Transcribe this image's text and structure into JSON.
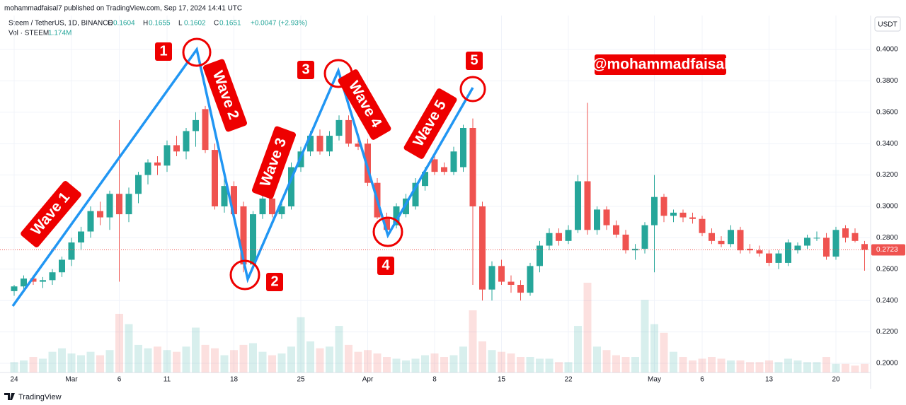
{
  "header": {
    "published": "mohammadfaisal7 published on TradingView.com, Sep 17, 2024 14:41 UTC",
    "symbol": "Steem / TetherUS, 1D, BINANCE",
    "ohlc": [
      {
        "label": "O",
        "value": "0.1604"
      },
      {
        "label": "H",
        "value": "0.1655"
      },
      {
        "label": "L",
        "value": "0.1602"
      },
      {
        "label": "C",
        "value": "0.1651"
      }
    ],
    "change": "+0.0047 (+2.93%)",
    "volume_label": "Vol · STEEM",
    "volume_value": "1.174M",
    "currency": "USDT",
    "logo": "TradingView"
  },
  "chart_data": {
    "type": "candlestick",
    "categories": [
      "24",
      null,
      null,
      null,
      null,
      null,
      "Mar",
      null,
      null,
      null,
      null,
      "6",
      null,
      null,
      null,
      null,
      "11",
      null,
      null,
      null,
      null,
      null,
      null,
      "18",
      null,
      null,
      null,
      null,
      null,
      null,
      "25",
      null,
      null,
      null,
      null,
      null,
      null,
      "Apr",
      null,
      null,
      null,
      null,
      null,
      null,
      "8",
      null,
      null,
      null,
      null,
      null,
      null,
      "15",
      null,
      null,
      null,
      null,
      null,
      null,
      "22",
      null,
      null,
      null,
      null,
      null,
      null,
      null,
      null,
      "May",
      null,
      null,
      null,
      null,
      "6",
      null,
      null,
      null,
      null,
      null,
      null,
      "13",
      null,
      null,
      null,
      null,
      null,
      null,
      "20",
      null,
      null,
      null
    ],
    "open": [
      0.246,
      0.249,
      0.254,
      0.252,
      0.253,
      0.258,
      0.266,
      0.277,
      0.284,
      0.297,
      0.293,
      0.308,
      0.295,
      0.308,
      0.32,
      0.328,
      0.326,
      0.339,
      0.335,
      0.348,
      0.362,
      0.336,
      0.3,
      0.313,
      0.3,
      0.263,
      0.295,
      0.305,
      0.295,
      0.3,
      0.325,
      0.335,
      0.345,
      0.335,
      0.345,
      0.355,
      0.34,
      0.34,
      0.315,
      0.293,
      0.288,
      0.295,
      0.3,
      0.313,
      0.33,
      0.325,
      0.322,
      0.325,
      0.35,
      0.3,
      0.247,
      0.262,
      0.252,
      0.25,
      0.245,
      0.262,
      0.275,
      0.283,
      0.278,
      0.285,
      0.316,
      0.285,
      0.298,
      0.288,
      0.282,
      0.272,
      0.273,
      0.288,
      0.306,
      0.294,
      0.296,
      0.293,
      0.292,
      0.283,
      0.278,
      0.276,
      0.285,
      0.273,
      0.272,
      0.27,
      0.264,
      0.264,
      0.272,
      0.275,
      0.28,
      0.28,
      0.268,
      0.286,
      0.283,
      0.276
    ],
    "high": [
      0.25,
      0.256,
      0.256,
      0.255,
      0.26,
      0.268,
      0.28,
      0.287,
      0.3,
      0.303,
      0.31,
      0.355,
      0.312,
      0.322,
      0.33,
      0.332,
      0.342,
      0.345,
      0.35,
      0.36,
      0.364,
      0.34,
      0.318,
      0.316,
      0.303,
      0.297,
      0.308,
      0.309,
      0.303,
      0.328,
      0.338,
      0.348,
      0.349,
      0.348,
      0.358,
      0.358,
      0.345,
      0.343,
      0.318,
      0.296,
      0.302,
      0.308,
      0.318,
      0.325,
      0.333,
      0.328,
      0.338,
      0.352,
      0.356,
      0.303,
      0.265,
      0.266,
      0.256,
      0.253,
      0.264,
      0.278,
      0.286,
      0.286,
      0.288,
      0.32,
      0.366,
      0.3,
      0.3,
      0.291,
      0.285,
      0.276,
      0.29,
      0.32,
      0.308,
      0.298,
      0.298,
      0.296,
      0.294,
      0.286,
      0.281,
      0.288,
      0.287,
      0.276,
      0.275,
      0.272,
      0.272,
      0.279,
      0.277,
      0.282,
      0.284,
      0.283,
      0.287,
      0.288,
      0.286,
      0.278
    ],
    "low": [
      0.243,
      0.246,
      0.25,
      0.248,
      0.25,
      0.255,
      0.262,
      0.272,
      0.28,
      0.288,
      0.285,
      0.252,
      0.29,
      0.302,
      0.314,
      0.32,
      0.322,
      0.332,
      0.33,
      0.338,
      0.334,
      0.298,
      0.296,
      0.293,
      0.258,
      0.26,
      0.292,
      0.293,
      0.292,
      0.298,
      0.322,
      0.332,
      0.333,
      0.332,
      0.342,
      0.338,
      0.336,
      0.313,
      0.292,
      0.282,
      0.286,
      0.293,
      0.298,
      0.31,
      0.32,
      0.32,
      0.32,
      0.322,
      0.25,
      0.24,
      0.24,
      0.25,
      0.245,
      0.24,
      0.243,
      0.258,
      0.272,
      0.275,
      0.276,
      0.283,
      0.282,
      0.282,
      0.285,
      0.28,
      0.27,
      0.266,
      0.27,
      0.258,
      0.29,
      0.29,
      0.29,
      0.289,
      0.281,
      0.276,
      0.274,
      0.274,
      0.27,
      0.27,
      0.268,
      0.262,
      0.26,
      0.262,
      0.27,
      0.273,
      0.278,
      0.266,
      0.266,
      0.277,
      0.277,
      0.259
    ],
    "close": [
      0.249,
      0.254,
      0.252,
      0.253,
      0.258,
      0.266,
      0.277,
      0.284,
      0.297,
      0.293,
      0.308,
      0.295,
      0.308,
      0.32,
      0.328,
      0.326,
      0.339,
      0.335,
      0.348,
      0.355,
      0.336,
      0.3,
      0.313,
      0.295,
      0.263,
      0.295,
      0.305,
      0.295,
      0.3,
      0.325,
      0.335,
      0.345,
      0.335,
      0.345,
      0.355,
      0.34,
      0.338,
      0.315,
      0.293,
      0.285,
      0.3,
      0.305,
      0.315,
      0.322,
      0.322,
      0.322,
      0.335,
      0.35,
      0.3,
      0.247,
      0.262,
      0.252,
      0.25,
      0.245,
      0.262,
      0.275,
      0.283,
      0.278,
      0.285,
      0.316,
      0.285,
      0.298,
      0.288,
      0.282,
      0.272,
      0.273,
      0.288,
      0.306,
      0.294,
      0.296,
      0.293,
      0.292,
      0.283,
      0.278,
      0.276,
      0.285,
      0.272,
      0.272,
      0.27,
      0.264,
      0.27,
      0.277,
      0.275,
      0.28,
      0.28,
      0.268,
      0.285,
      0.28,
      0.278,
      0.2723
    ],
    "volume": [
      0.6,
      0.7,
      0.9,
      0.8,
      1.2,
      1.4,
      1.1,
      1.0,
      1.2,
      1.0,
      1.3,
      3.4,
      2.8,
      1.6,
      1.4,
      1.5,
      1.3,
      1.2,
      1.5,
      2.6,
      1.6,
      1.4,
      1.0,
      1.3,
      1.6,
      1.7,
      1.2,
      1.0,
      1.1,
      1.5,
      3.2,
      1.8,
      1.4,
      1.5,
      2.7,
      1.6,
      1.2,
      1.3,
      1.1,
      0.9,
      0.8,
      0.7,
      0.8,
      1.0,
      1.1,
      0.9,
      1.0,
      1.5,
      3.6,
      1.8,
      1.3,
      1.2,
      1.1,
      0.9,
      0.9,
      0.8,
      0.8,
      0.6,
      0.6,
      2.7,
      5.2,
      1.5,
      1.3,
      1.0,
      0.9,
      0.9,
      4.2,
      2.8,
      2.3,
      1.2,
      0.9,
      0.7,
      0.8,
      0.9,
      0.8,
      0.7,
      0.7,
      0.6,
      0.6,
      0.7,
      0.6,
      0.8,
      0.7,
      0.6,
      0.6,
      0.9,
      0.5,
      0.5,
      0.4,
      0.5
    ],
    "up_color": "#26a69a",
    "down_color": "#ef5350",
    "ylim": [
      0.19,
      0.41
    ],
    "yticks": [
      {
        "value": 0.2,
        "label": "0.2000"
      },
      {
        "value": 0.22,
        "label": "0.2200"
      },
      {
        "value": 0.24,
        "label": "0.2400"
      },
      {
        "value": 0.26,
        "label": "0.2600"
      },
      {
        "value": 0.28,
        "label": "0.2800"
      },
      {
        "value": 0.3,
        "label": "0.3000"
      },
      {
        "value": 0.32,
        "label": "0.3200"
      },
      {
        "value": 0.34,
        "label": "0.3400"
      },
      {
        "value": 0.36,
        "label": "0.3600"
      },
      {
        "value": 0.38,
        "label": "0.3800"
      },
      {
        "value": 0.4,
        "label": "0.4000"
      }
    ],
    "last_price": {
      "value": 0.2723,
      "label": "0.2723"
    },
    "grid": true,
    "wave_labels": [
      "Wave 1",
      "Wave 2",
      "Wave 3",
      "Wave 4",
      "Wave 5"
    ],
    "point_labels": [
      "1",
      "2",
      "3",
      "4",
      "5"
    ],
    "watermark": "@mohammadfaisal"
  }
}
